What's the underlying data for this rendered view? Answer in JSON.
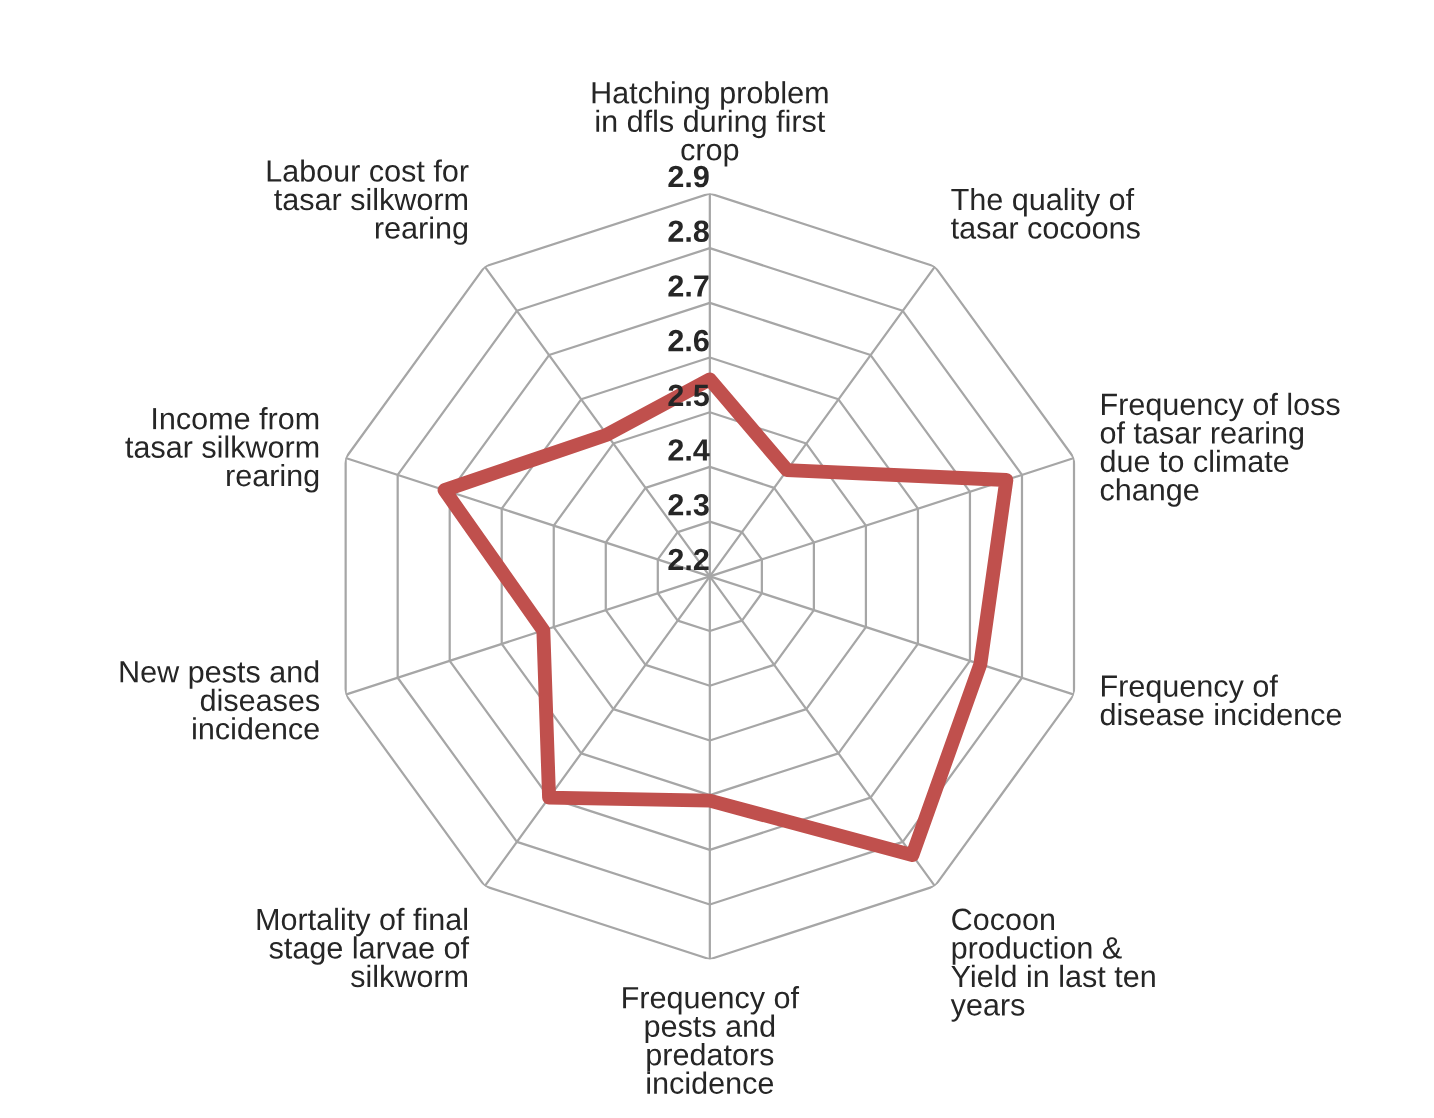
{
  "chart_data": {
    "type": "radar",
    "categories": [
      "Hatching problem\nin dfls during first\ncrop",
      "The quality of\ntasar cocoons",
      "Frequency of loss\nof tasar rearing\ndue to climate\nchange",
      "Frequency of\ndisease incidence",
      "Cocoon\nproduction &\nYield in last ten\nyears",
      "Frequency of\npests and\npredators\nincidence",
      "Mortality of final\nstage larvae of\nsilkworm",
      "New pests and\ndiseases\nincidence",
      "Income from\ntasar silkworm\nrearing",
      "Labour cost for\ntasar silkworm\nrearing"
    ],
    "series": [
      {
        "color": "#c0504d",
        "values": [
          2.56,
          2.44,
          2.77,
          2.72,
          2.83,
          2.61,
          2.7,
          2.52,
          2.71,
          2.52
        ]
      }
    ],
    "ylim": [
      2.2,
      2.9
    ],
    "yticks": [
      2.2,
      2.3,
      2.4,
      2.5,
      2.6,
      2.7,
      2.8,
      2.9
    ],
    "grid": true
  }
}
